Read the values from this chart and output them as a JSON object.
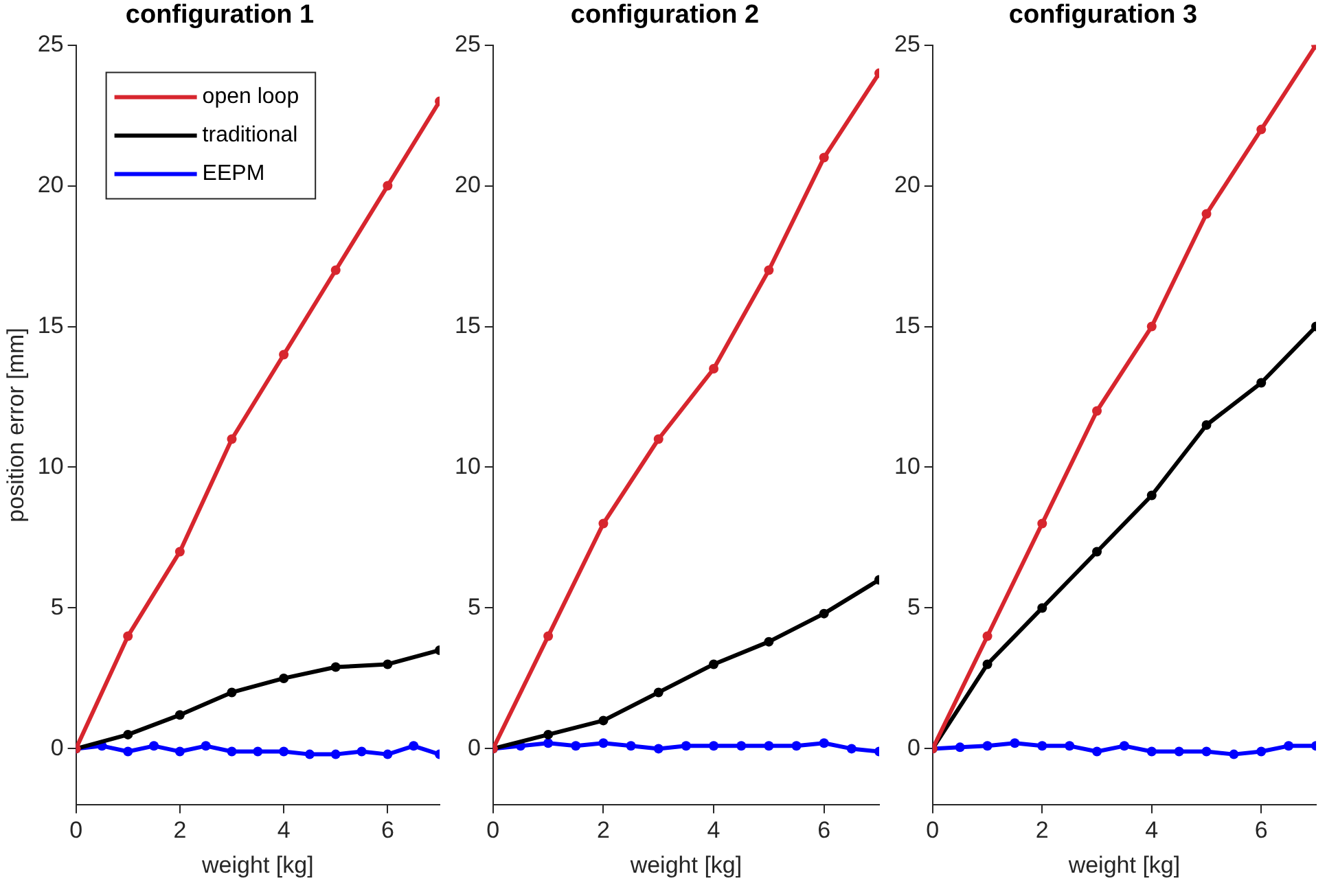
{
  "chart_data": [
    {
      "type": "line",
      "title": "configuration 1",
      "xlabel": "weight [kg]",
      "ylabel": "position error [mm]",
      "xlim": [
        0,
        7
      ],
      "xticks": [
        0,
        2,
        4,
        6
      ],
      "ylim": [
        -2,
        25
      ],
      "yticks": [
        0,
        5,
        10,
        15,
        20,
        25
      ],
      "grid": false,
      "marker": "circle",
      "line_style": "solid",
      "legend": "top left",
      "series": [
        {
          "name": "open loop",
          "color": "#d7262e",
          "x": [
            0,
            1,
            2,
            3,
            4,
            5,
            6,
            7
          ],
          "values": [
            0,
            4,
            7,
            11,
            14,
            17,
            20,
            23
          ]
        },
        {
          "name": "traditional",
          "color": "#000000",
          "x": [
            0,
            1,
            2,
            3,
            4,
            5,
            6,
            7
          ],
          "values": [
            0,
            0.5,
            1.2,
            2,
            2.5,
            2.9,
            3,
            3.5
          ]
        },
        {
          "name": "EEPM",
          "color": "#0000ff",
          "x": [
            0,
            0.5,
            1,
            1.5,
            2,
            2.5,
            3,
            3.5,
            4,
            4.5,
            5,
            5.5,
            6,
            6.5,
            7
          ],
          "values": [
            0,
            0.1,
            -0.1,
            0.1,
            -0.1,
            0.1,
            -0.1,
            -0.1,
            -0.1,
            -0.2,
            -0.2,
            -0.1,
            -0.2,
            0.1,
            -0.2
          ]
        }
      ]
    },
    {
      "type": "line",
      "title": "configuration 2",
      "xlabel": "weight [kg]",
      "xlim": [
        0,
        7
      ],
      "xticks": [
        0,
        2,
        4,
        6
      ],
      "ylim": [
        -2,
        25
      ],
      "yticks": [
        0,
        5,
        10,
        15,
        20,
        25
      ],
      "grid": false,
      "marker": "circle",
      "line_style": "solid",
      "series": [
        {
          "color": "#d7262e",
          "x": [
            0,
            1,
            2,
            3,
            4,
            5,
            6,
            7
          ],
          "values": [
            0,
            4,
            8,
            11,
            13.5,
            17,
            21,
            24
          ]
        },
        {
          "color": "#000000",
          "x": [
            0,
            1,
            2,
            3,
            4,
            5,
            6,
            7
          ],
          "values": [
            0,
            0.5,
            1,
            2,
            3,
            3.8,
            4.8,
            6
          ]
        },
        {
          "color": "#0000ff",
          "x": [
            0,
            0.5,
            1,
            1.5,
            2,
            2.5,
            3,
            3.5,
            4,
            4.5,
            5,
            5.5,
            6,
            6.5,
            7
          ],
          "values": [
            0,
            0.1,
            0.2,
            0.1,
            0.2,
            0.1,
            0,
            0.1,
            0.1,
            0.1,
            0.1,
            0.1,
            0.2,
            0,
            -0.1
          ]
        }
      ]
    },
    {
      "type": "line",
      "title": "configuration 3",
      "xlabel": "weight [kg]",
      "xlim": [
        0,
        7
      ],
      "xticks": [
        0,
        2,
        4,
        6
      ],
      "ylim": [
        -2,
        25
      ],
      "yticks": [
        0,
        5,
        10,
        15,
        20,
        25
      ],
      "grid": false,
      "marker": "circle",
      "line_style": "solid",
      "series": [
        {
          "color": "#d7262e",
          "x": [
            0,
            1,
            2,
            3,
            4,
            5,
            6,
            7
          ],
          "values": [
            0,
            4,
            8,
            12,
            15,
            19,
            22,
            25
          ]
        },
        {
          "color": "#000000",
          "x": [
            0,
            1,
            2,
            3,
            4,
            5,
            6,
            7
          ],
          "values": [
            0,
            3,
            5,
            7,
            9,
            11.5,
            13,
            15
          ]
        },
        {
          "color": "#0000ff",
          "x": [
            0,
            0.5,
            1,
            1.5,
            2,
            2.5,
            3,
            3.5,
            4,
            4.5,
            5,
            5.5,
            6,
            6.5,
            7
          ],
          "values": [
            0,
            0.05,
            0.1,
            0.2,
            0.1,
            0.1,
            -0.1,
            0.1,
            -0.1,
            -0.1,
            -0.1,
            -0.2,
            -0.1,
            0.1,
            0.1
          ]
        }
      ]
    }
  ]
}
